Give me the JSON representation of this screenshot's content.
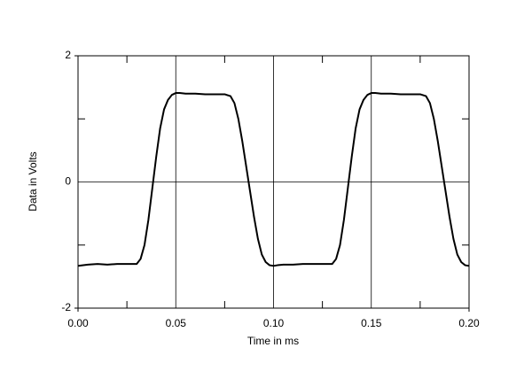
{
  "chart_data": {
    "type": "line",
    "xlabel": "Time in ms",
    "ylabel": "Data in Volts",
    "x": [
      0,
      0.005,
      0.01,
      0.015,
      0.02,
      0.025,
      0.03,
      0.032,
      0.034,
      0.036,
      0.038,
      0.04,
      0.042,
      0.044,
      0.046,
      0.048,
      0.05,
      0.052,
      0.055,
      0.06,
      0.065,
      0.07,
      0.075,
      0.078,
      0.08,
      0.082,
      0.084,
      0.086,
      0.088,
      0.09,
      0.092,
      0.094,
      0.096,
      0.098,
      0.1,
      0.102,
      0.105,
      0.11,
      0.115,
      0.12,
      0.125,
      0.13,
      0.132,
      0.134,
      0.136,
      0.138,
      0.14,
      0.142,
      0.144,
      0.146,
      0.148,
      0.15,
      0.152,
      0.155,
      0.16,
      0.165,
      0.17,
      0.175,
      0.178,
      0.18,
      0.182,
      0.184,
      0.186,
      0.188,
      0.19,
      0.192,
      0.194,
      0.196,
      0.198,
      0.2
    ],
    "series": [
      {
        "color": "#000000",
        "values": [
          -1.33,
          -1.31,
          -1.3,
          -1.31,
          -1.3,
          -1.3,
          -1.3,
          -1.22,
          -1.0,
          -0.6,
          -0.1,
          0.4,
          0.85,
          1.15,
          1.3,
          1.38,
          1.41,
          1.41,
          1.4,
          1.4,
          1.39,
          1.39,
          1.39,
          1.36,
          1.25,
          1.0,
          0.65,
          0.25,
          -0.15,
          -0.55,
          -0.9,
          -1.15,
          -1.27,
          -1.32,
          -1.33,
          -1.32,
          -1.31,
          -1.31,
          -1.3,
          -1.3,
          -1.3,
          -1.3,
          -1.22,
          -1.0,
          -0.6,
          -0.1,
          0.4,
          0.85,
          1.15,
          1.3,
          1.38,
          1.41,
          1.41,
          1.4,
          1.4,
          1.39,
          1.39,
          1.39,
          1.36,
          1.25,
          1.0,
          0.65,
          0.25,
          -0.15,
          -0.55,
          -0.9,
          -1.15,
          -1.27,
          -1.32,
          -1.33
        ]
      }
    ],
    "xlim": [
      0,
      0.2
    ],
    "xticks": [
      {
        "value": 0,
        "label": "0.00"
      },
      0.05,
      {
        "value": 0.1,
        "label": "0.10"
      },
      0.15,
      {
        "value": 0.2,
        "label": "0.20"
      }
    ],
    "xminor_ticks": [
      0.025,
      0.075,
      0.125,
      0.175
    ],
    "ylim": [
      -2,
      2
    ],
    "yticks": [
      -2,
      0,
      2
    ],
    "yminor_ticks": [
      -1,
      1
    ],
    "grid": true
  }
}
